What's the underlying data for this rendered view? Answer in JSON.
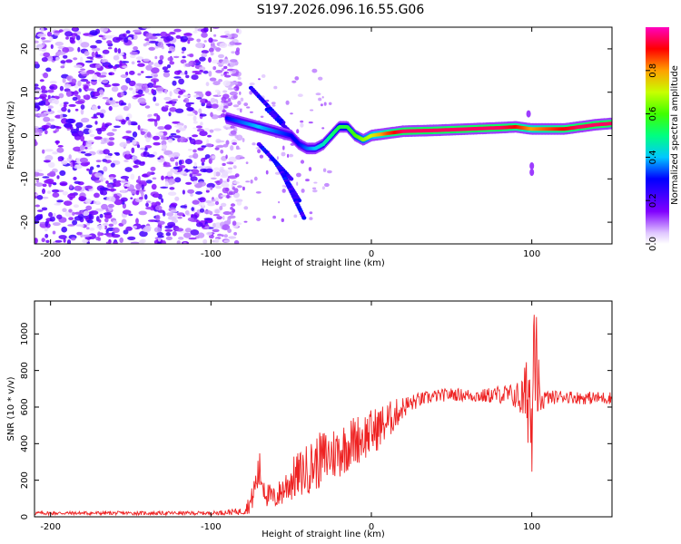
{
  "title": "S197.2026.096.16.55.G06",
  "chart_data": [
    {
      "type": "heatmap",
      "xlabel": "Height of straight line (km)",
      "ylabel": "Frequency (Hz)",
      "xlim": [
        -210,
        150
      ],
      "ylim": [
        -25,
        25
      ],
      "x_ticks": [
        -200,
        -100,
        0,
        100
      ],
      "x_tick_labels": [
        "-200",
        "-100",
        "0",
        "100"
      ],
      "y_ticks": [
        -20,
        -10,
        0,
        10,
        20
      ],
      "y_tick_labels": [
        "-20",
        "-10",
        "0",
        "10",
        "20"
      ],
      "colorbar": {
        "label": "Normalized spectral amplitude",
        "range": [
          0,
          1
        ],
        "ticks": [
          0.0,
          0.2,
          0.4,
          0.6,
          0.8
        ],
        "tick_labels": [
          "0.0",
          "0.2",
          "0.4",
          "0.6",
          "0.8"
        ]
      },
      "ridge": {
        "x": [
          -90,
          -80,
          -70,
          -60,
          -50,
          -45,
          -40,
          -35,
          -30,
          -25,
          -20,
          -15,
          -10,
          -5,
          0,
          10,
          20,
          40,
          60,
          80,
          90,
          100,
          110,
          120,
          130,
          140,
          150
        ],
        "freq": [
          4,
          3,
          2,
          1,
          0,
          -2,
          -3,
          -3,
          -2,
          0,
          2,
          2,
          0,
          -1,
          0,
          0.5,
          1,
          1.2,
          1.5,
          1.8,
          2,
          1.5,
          1.5,
          1.5,
          2,
          2.5,
          2.8
        ],
        "amplitude": [
          0.3,
          0.35,
          0.4,
          0.35,
          0.3,
          0.3,
          0.35,
          0.4,
          0.45,
          0.5,
          0.55,
          0.55,
          0.6,
          0.65,
          0.7,
          0.85,
          0.95,
          0.95,
          0.95,
          0.95,
          0.9,
          0.8,
          0.85,
          0.9,
          0.95,
          0.95,
          0.95
        ]
      },
      "noise_region_x": [
        -210,
        -90
      ]
    },
    {
      "type": "line",
      "xlabel": "Height of straight line (km)",
      "ylabel": "SNR (10 * v/v)",
      "xlim": [
        -210,
        150
      ],
      "ylim": [
        0,
        1180
      ],
      "x_ticks": [
        -200,
        -100,
        0,
        100
      ],
      "x_tick_labels": [
        "-200",
        "-100",
        "0",
        "100"
      ],
      "y_ticks": [
        0,
        200,
        400,
        600,
        800,
        1000
      ],
      "y_tick_labels": [
        "0",
        "200",
        "400",
        "600",
        "800",
        "1000"
      ],
      "series": [
        {
          "name": "SNR",
          "color": "#ee2222",
          "x": [
            -210,
            -150,
            -100,
            -80,
            -75,
            -70,
            -65,
            -60,
            -50,
            -40,
            -30,
            -20,
            -10,
            0,
            10,
            20,
            30,
            40,
            50,
            60,
            70,
            80,
            90,
            95,
            100,
            102,
            105,
            110,
            120,
            130,
            140,
            150
          ],
          "y": [
            20,
            20,
            20,
            30,
            80,
            250,
            120,
            100,
            200,
            260,
            320,
            360,
            420,
            460,
            520,
            600,
            640,
            660,
            670,
            665,
            660,
            670,
            660,
            640,
            700,
            900,
            640,
            650,
            660,
            650,
            650,
            650
          ],
          "noise_amp": [
            10,
            10,
            10,
            20,
            60,
            120,
            70,
            60,
            120,
            140,
            160,
            150,
            140,
            130,
            110,
            60,
            40,
            35,
            35,
            35,
            40,
            50,
            70,
            150,
            400,
            450,
            80,
            40,
            35,
            35,
            35,
            35
          ]
        }
      ]
    }
  ]
}
